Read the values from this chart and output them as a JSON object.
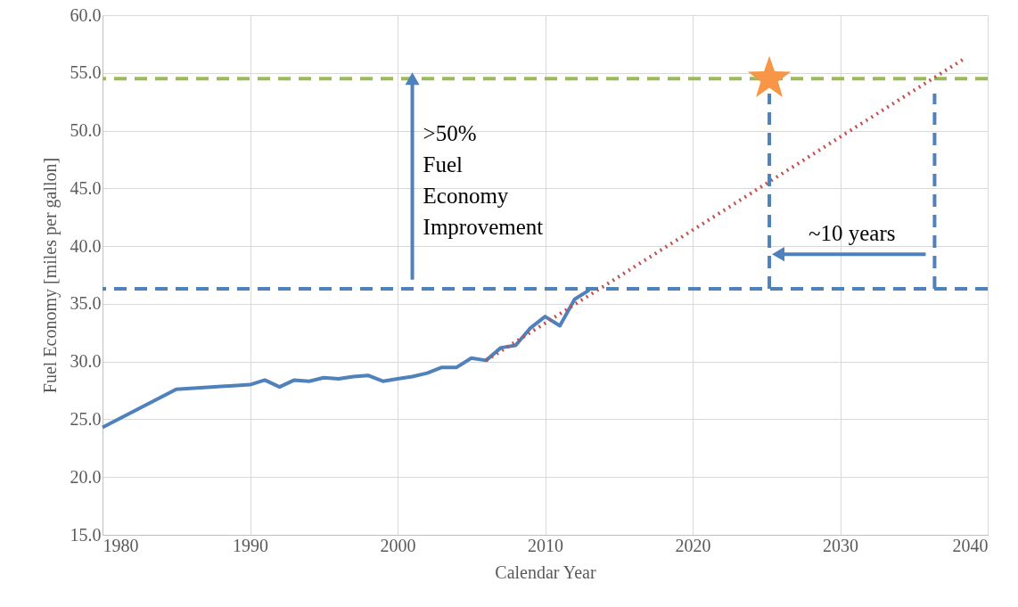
{
  "chart_data": {
    "type": "line",
    "xlabel": "Calendar Year",
    "ylabel": "Fuel Economy [miles per gallon]",
    "xlim": [
      1980,
      2040
    ],
    "xticks": [
      1980,
      1990,
      2000,
      2010,
      2020,
      2030,
      2040
    ],
    "ylim": [
      15,
      60
    ],
    "yticks": [
      {
        "value": 15,
        "label": "15.0"
      },
      {
        "value": 20,
        "label": "20.0"
      },
      {
        "value": 25,
        "label": "25.0"
      },
      {
        "value": 30,
        "label": "30.0"
      },
      {
        "value": 35,
        "label": "35.0"
      },
      {
        "value": 40,
        "label": "40.0"
      },
      {
        "value": 45,
        "label": "45.0"
      },
      {
        "value": 50,
        "label": "50.0"
      },
      {
        "value": 55,
        "label": "55.0"
      },
      {
        "value": 60,
        "label": "60.0"
      }
    ],
    "grid": true,
    "series": [
      {
        "color": "#4f81bd",
        "line_style": "solid",
        "x": [
          1980,
          1985,
          1990,
          1991,
          1992,
          1993,
          1994,
          1995,
          1996,
          1997,
          1998,
          1999,
          2000,
          2001,
          2002,
          2003,
          2004,
          2005,
          2006,
          2007,
          2008,
          2009,
          2010,
          2011,
          2012,
          2013
        ],
        "values": [
          24.3,
          27.6,
          28.0,
          28.4,
          27.8,
          28.4,
          28.3,
          28.6,
          28.5,
          28.7,
          28.8,
          28.3,
          28.5,
          28.7,
          29.0,
          29.5,
          29.5,
          30.3,
          30.1,
          31.2,
          31.4,
          32.9,
          33.9,
          33.1,
          35.4,
          36.2
        ]
      },
      {
        "color": "#c0504d",
        "line_style": "dotted",
        "x": [
          2006,
          2038.5
        ],
        "values": [
          30.1,
          56.3
        ]
      },
      {
        "color": "#4f81bd",
        "line_style": "dashed",
        "x": [
          2025.2,
          2025.2
        ],
        "values": [
          36.3,
          53.2
        ]
      },
      {
        "color": "#4f81bd",
        "line_style": "dashed",
        "x": [
          2036.4,
          2036.4
        ],
        "values": [
          36.3,
          53.2
        ]
      },
      {
        "color": "#4f81bd",
        "line_style": "solid",
        "marker": "triangle",
        "x": [
          2001,
          2001
        ],
        "values": [
          37.1,
          54.5
        ]
      },
      {
        "color": "#4f81bd",
        "line_style": "solid",
        "marker": "triangle",
        "x": [
          2035.8,
          2025.8
        ],
        "values": [
          39.3,
          39.3
        ]
      },
      {
        "type": "scatter",
        "color": "#f79646",
        "marker": "star",
        "x": [
          2025.2
        ],
        "values": [
          54.5
        ]
      }
    ],
    "ref_lines": [
      {
        "axis": "y",
        "value": 54.5,
        "color": "#9bbb59",
        "line_style": "dashed"
      },
      {
        "axis": "y",
        "value": 36.3,
        "color": "#4f81bd",
        "line_style": "dashed"
      }
    ],
    "annotations": [
      ">50%\nFuel\nEconomy\nImprovement",
      "~10 years"
    ]
  }
}
